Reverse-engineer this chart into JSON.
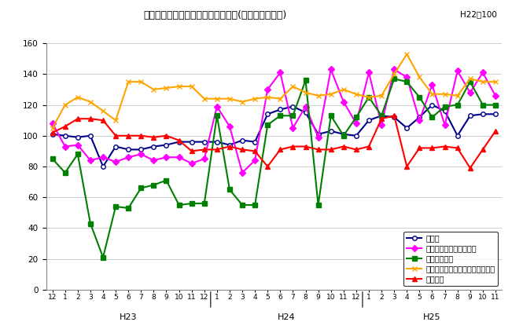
{
  "title": "三重県の主要業種別生産指数の推移(季節調整済指数)",
  "subtitle": "H22＝100",
  "x_tick_labels": [
    "12",
    "1",
    "2",
    "3",
    "4",
    "5",
    "6",
    "7",
    "8",
    "9",
    "10",
    "11",
    "12",
    "1",
    "2",
    "3",
    "4",
    "5",
    "6",
    "7",
    "8",
    "9",
    "10",
    "11",
    "12",
    "1",
    "2",
    "3",
    "4",
    "5",
    "6",
    "7",
    "8",
    "9",
    "10",
    "11"
  ],
  "group_labels": [
    {
      "label": "H23",
      "start": 0,
      "end": 12
    },
    {
      "label": "H24",
      "start": 13,
      "end": 24
    },
    {
      "label": "H25",
      "start": 25,
      "end": 35
    }
  ],
  "ylim": [
    0,
    160
  ],
  "yticks": [
    0,
    20,
    40,
    60,
    80,
    100,
    120,
    140,
    160
  ],
  "series": [
    {
      "name": "鉱工業",
      "color": "#00008B",
      "marker": "o",
      "markersize": 4,
      "linewidth": 1.5,
      "markerfacecolor": "white",
      "values": [
        101,
        100,
        99,
        100,
        80,
        93,
        91,
        91,
        93,
        94,
        96,
        96,
        96,
        96,
        94,
        97,
        96,
        114,
        117,
        119,
        115,
        101,
        103,
        101,
        100,
        110,
        113,
        112,
        105,
        112,
        120,
        116,
        100,
        113,
        114,
        114
      ]
    },
    {
      "name": "電子部品・デバイス工業",
      "color": "#FF00FF",
      "marker": "D",
      "markersize": 4,
      "linewidth": 1.5,
      "markerfacecolor": "#FF00FF",
      "values": [
        108,
        93,
        94,
        84,
        86,
        83,
        86,
        88,
        84,
        86,
        86,
        82,
        85,
        119,
        106,
        76,
        84,
        130,
        141,
        105,
        119,
        99,
        143,
        122,
        108,
        141,
        107,
        143,
        138,
        110,
        133,
        107,
        142,
        128,
        141,
        126
      ]
    },
    {
      "name": "輸送機械工業",
      "color": "#008000",
      "marker": "s",
      "markersize": 4,
      "linewidth": 1.5,
      "markerfacecolor": "#008000",
      "values": [
        85,
        76,
        88,
        43,
        21,
        54,
        53,
        66,
        68,
        71,
        55,
        56,
        56,
        113,
        65,
        55,
        55,
        107,
        113,
        113,
        136,
        55,
        113,
        100,
        112,
        125,
        113,
        137,
        135,
        125,
        112,
        119,
        120,
        135,
        120,
        120
      ]
    },
    {
      "name": "はん用・生産用・業務用機械工業",
      "color": "#FFA500",
      "marker": "x",
      "markersize": 5,
      "linewidth": 1.5,
      "markerfacecolor": "#FFA500",
      "values": [
        105,
        120,
        125,
        122,
        116,
        110,
        135,
        135,
        130,
        131,
        132,
        132,
        124,
        124,
        124,
        122,
        124,
        125,
        124,
        132,
        128,
        126,
        127,
        130,
        127,
        125,
        126,
        140,
        153,
        138,
        127,
        127,
        126,
        137,
        135,
        135
      ]
    },
    {
      "name": "化学工業",
      "color": "#FF0000",
      "marker": "^",
      "markersize": 5,
      "linewidth": 1.5,
      "markerfacecolor": "#FF0000",
      "values": [
        102,
        106,
        111,
        111,
        110,
        100,
        100,
        100,
        99,
        100,
        97,
        90,
        91,
        91,
        93,
        91,
        90,
        80,
        91,
        93,
        93,
        91,
        91,
        93,
        91,
        93,
        111,
        113,
        80,
        92,
        92,
        93,
        92,
        79,
        91,
        103
      ]
    }
  ],
  "background_color": "#FFFFFF",
  "grid_color": "#BBBBBB",
  "figsize": [
    6.51,
    4.24
  ],
  "dpi": 100
}
